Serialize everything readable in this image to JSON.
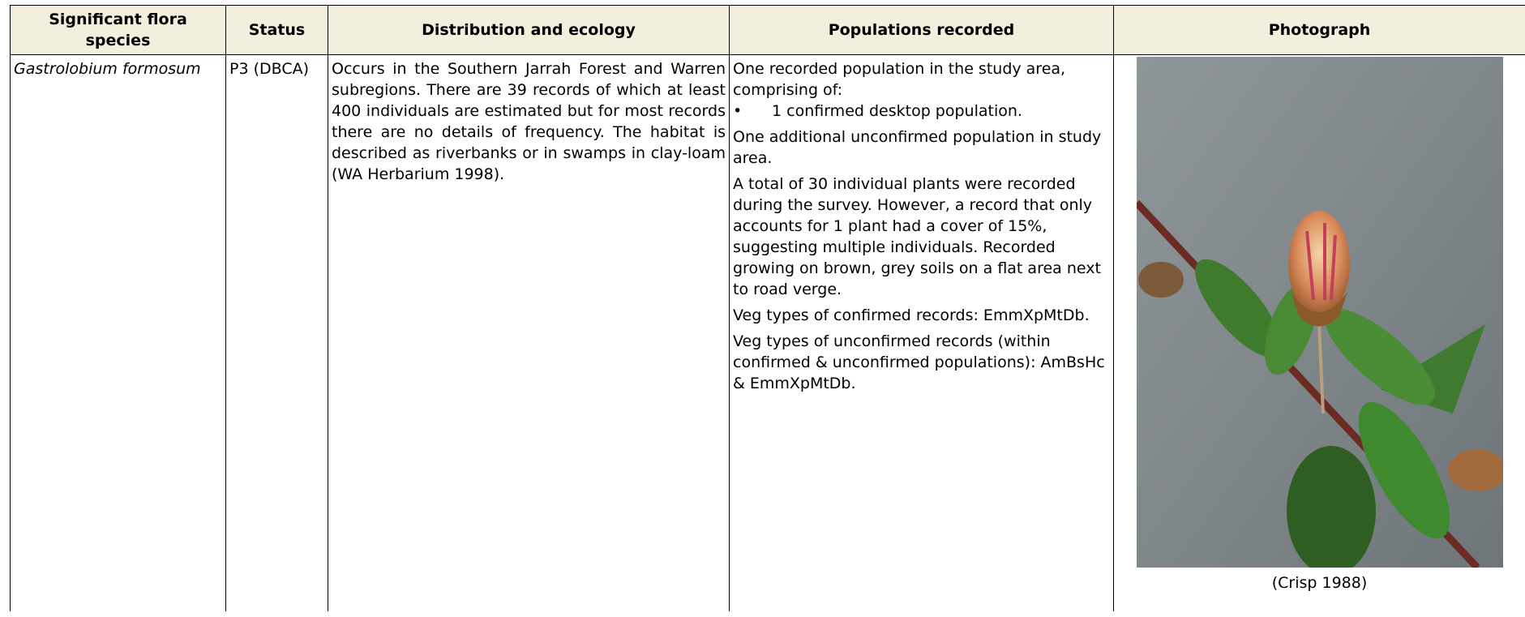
{
  "table": {
    "headers": [
      "Significant flora species",
      "Status",
      "Distribution and ecology",
      "Populations recorded",
      "Photograph"
    ],
    "rows": [
      {
        "species": "Gastrolobium formosum",
        "status": "P3 (DBCA)",
        "distribution": "Occurs in the Southern Jarrah Forest and Warren subregions. There are 39 records of which at least 400 individuals are estimated but for most records there are no details of frequency. The habitat is described as riverbanks or in swamps in clay-loam (WA Herbarium 1998).",
        "populations": {
          "intro": "One recorded population in the study area, comprising of:",
          "bullet": "1 confirmed desktop population.",
          "paragraphs": [
            "One additional unconfirmed population in study area.",
            "A total of 30 individual plants were recorded during the survey. However, a record that only accounts for 1 plant had a cover of 15%, suggesting multiple individuals. Recorded growing on brown, grey soils on a flat area next to road verge.",
            "Veg types of confirmed records: EmmXpMtDb.",
            "Veg types of unconfirmed records (within confirmed & unconfirmed populations): AmBsHc & EmmXpMtDb."
          ]
        },
        "photo_caption": "(Crisp 1988)"
      }
    ]
  }
}
